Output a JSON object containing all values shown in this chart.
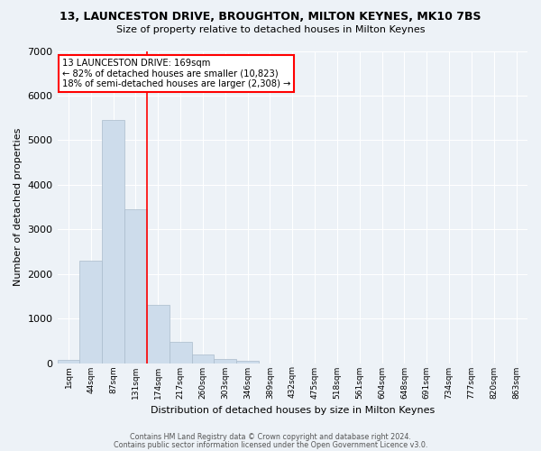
{
  "title": "13, LAUNCESTON DRIVE, BROUGHTON, MILTON KEYNES, MK10 7BS",
  "subtitle": "Size of property relative to detached houses in Milton Keynes",
  "xlabel": "Distribution of detached houses by size in Milton Keynes",
  "ylabel": "Number of detached properties",
  "bar_values": [
    75,
    2300,
    5450,
    3450,
    1300,
    480,
    200,
    90,
    55,
    0,
    0,
    0,
    0,
    0,
    0,
    0,
    0,
    0,
    0,
    0,
    0
  ],
  "bar_labels": [
    "1sqm",
    "44sqm",
    "87sqm",
    "131sqm",
    "174sqm",
    "217sqm",
    "260sqm",
    "303sqm",
    "346sqm",
    "389sqm",
    "432sqm",
    "475sqm",
    "518sqm",
    "561sqm",
    "604sqm",
    "648sqm",
    "691sqm",
    "734sqm",
    "777sqm",
    "820sqm",
    "863sqm"
  ],
  "bar_color": "#cddceb",
  "bar_edge_color": "#aabccc",
  "vline_color": "red",
  "vline_x_index": 3.5,
  "annotation_text": "13 LAUNCESTON DRIVE: 169sqm\n← 82% of detached houses are smaller (10,823)\n18% of semi-detached houses are larger (2,308) →",
  "annotation_box_color": "white",
  "annotation_box_edge": "red",
  "ylim": [
    0,
    7000
  ],
  "yticks": [
    0,
    1000,
    2000,
    3000,
    4000,
    5000,
    6000,
    7000
  ],
  "footer1": "Contains HM Land Registry data © Crown copyright and database right 2024.",
  "footer2": "Contains public sector information licensed under the Open Government Licence v3.0.",
  "bg_color": "#edf2f7",
  "grid_color": "#ffffff"
}
